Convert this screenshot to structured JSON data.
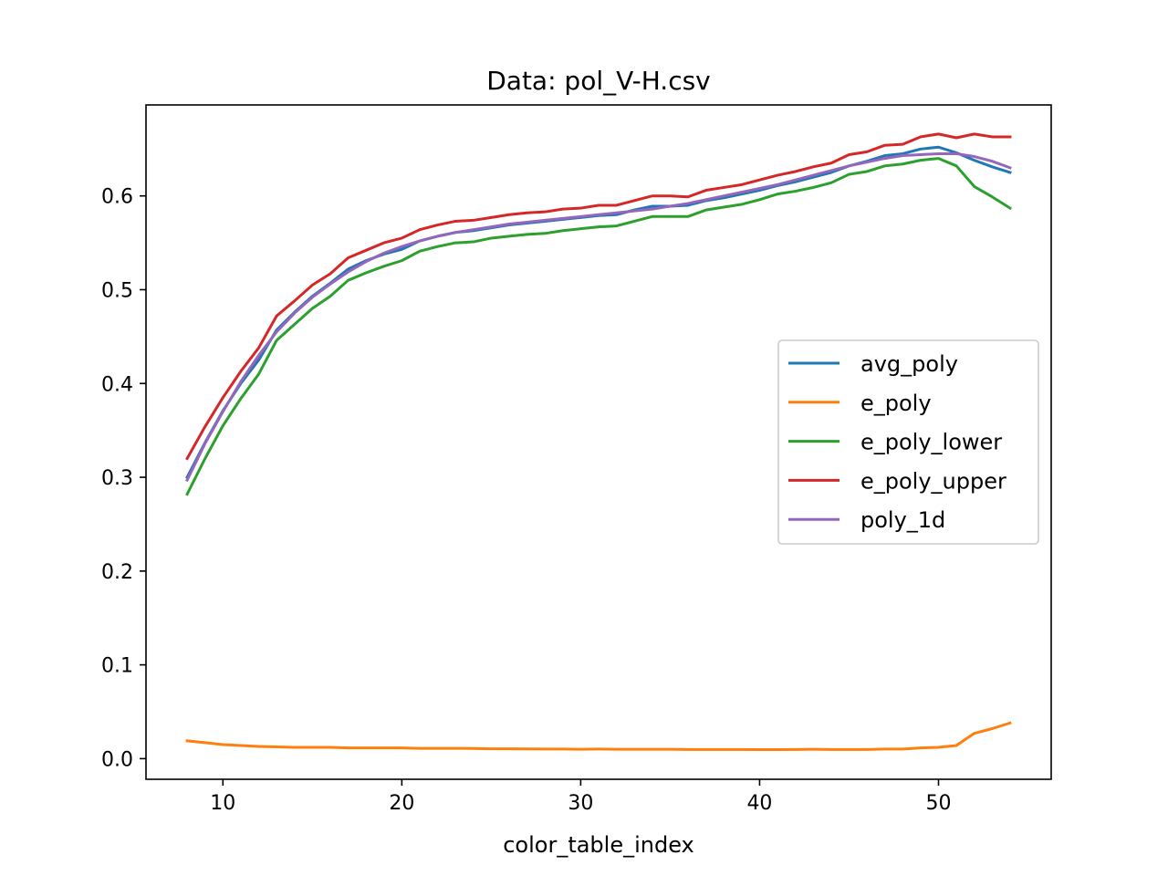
{
  "chart_data": {
    "type": "line",
    "title": "Data: pol_V-H.csv",
    "xlabel": "color_table_index",
    "ylabel": "",
    "xlim": [
      5.7,
      56.3
    ],
    "ylim": [
      -0.022,
      0.697
    ],
    "xticks": [
      10,
      20,
      30,
      40,
      50
    ],
    "xtick_labels": [
      "10",
      "20",
      "30",
      "40",
      "50"
    ],
    "yticks": [
      0.0,
      0.1,
      0.2,
      0.3,
      0.4,
      0.5,
      0.6
    ],
    "ytick_labels": [
      "0.0",
      "0.1",
      "0.2",
      "0.3",
      "0.4",
      "0.5",
      "0.6"
    ],
    "grid": false,
    "legend_position": "center-right",
    "x": [
      8,
      9,
      10,
      11,
      12,
      13,
      14,
      15,
      16,
      17,
      18,
      19,
      20,
      21,
      22,
      23,
      24,
      25,
      26,
      27,
      28,
      29,
      30,
      31,
      32,
      33,
      34,
      35,
      36,
      37,
      38,
      39,
      40,
      41,
      42,
      43,
      44,
      45,
      46,
      47,
      48,
      49,
      50,
      51,
      52,
      53,
      54
    ],
    "series": [
      {
        "name": "avg_poly",
        "color": "#1f77b4",
        "values": [
          0.3,
          0.337,
          0.371,
          0.4,
          0.425,
          0.457,
          0.476,
          0.493,
          0.507,
          0.522,
          0.531,
          0.538,
          0.543,
          0.552,
          0.557,
          0.561,
          0.563,
          0.566,
          0.569,
          0.571,
          0.573,
          0.575,
          0.577,
          0.579,
          0.58,
          0.585,
          0.589,
          0.589,
          0.59,
          0.595,
          0.598,
          0.602,
          0.606,
          0.611,
          0.615,
          0.62,
          0.625,
          0.632,
          0.637,
          0.643,
          0.645,
          0.65,
          0.652,
          0.646,
          0.638,
          0.631,
          0.625
        ]
      },
      {
        "name": "e_poly",
        "color": "#ff7f0e",
        "values": [
          0.019,
          0.017,
          0.015,
          0.014,
          0.013,
          0.0125,
          0.012,
          0.012,
          0.012,
          0.0115,
          0.0115,
          0.0115,
          0.0115,
          0.011,
          0.011,
          0.011,
          0.0108,
          0.0105,
          0.0105,
          0.0103,
          0.0102,
          0.0102,
          0.01,
          0.0102,
          0.01,
          0.01,
          0.01,
          0.01,
          0.0098,
          0.0098,
          0.0097,
          0.0097,
          0.0096,
          0.0096,
          0.0098,
          0.01,
          0.0097,
          0.0097,
          0.0097,
          0.0102,
          0.0102,
          0.0115,
          0.012,
          0.014,
          0.027,
          0.032,
          0.038
        ]
      },
      {
        "name": "e_poly_lower",
        "color": "#2ca02c",
        "values": [
          0.282,
          0.32,
          0.355,
          0.384,
          0.41,
          0.446,
          0.463,
          0.48,
          0.493,
          0.51,
          0.518,
          0.525,
          0.531,
          0.541,
          0.546,
          0.55,
          0.551,
          0.555,
          0.557,
          0.559,
          0.56,
          0.563,
          0.565,
          0.567,
          0.568,
          0.573,
          0.578,
          0.578,
          0.578,
          0.585,
          0.588,
          0.591,
          0.596,
          0.602,
          0.605,
          0.609,
          0.614,
          0.623,
          0.626,
          0.632,
          0.634,
          0.638,
          0.64,
          0.632,
          0.61,
          0.599,
          0.587
        ]
      },
      {
        "name": "e_poly_upper",
        "color": "#d62728",
        "values": [
          0.32,
          0.354,
          0.385,
          0.413,
          0.438,
          0.472,
          0.488,
          0.505,
          0.517,
          0.534,
          0.542,
          0.55,
          0.555,
          0.564,
          0.569,
          0.573,
          0.574,
          0.577,
          0.58,
          0.582,
          0.583,
          0.586,
          0.587,
          0.59,
          0.59,
          0.595,
          0.6,
          0.6,
          0.599,
          0.606,
          0.609,
          0.612,
          0.617,
          0.622,
          0.626,
          0.631,
          0.635,
          0.644,
          0.647,
          0.654,
          0.655,
          0.663,
          0.666,
          0.662,
          0.666,
          0.663,
          0.663
        ]
      },
      {
        "name": "poly_1d",
        "color": "#9467bd",
        "values": [
          0.297,
          0.336,
          0.37,
          0.402,
          0.43,
          0.455,
          0.475,
          0.492,
          0.506,
          0.519,
          0.53,
          0.539,
          0.546,
          0.552,
          0.557,
          0.561,
          0.564,
          0.567,
          0.57,
          0.572,
          0.574,
          0.576,
          0.578,
          0.58,
          0.582,
          0.584,
          0.586,
          0.589,
          0.592,
          0.596,
          0.6,
          0.604,
          0.608,
          0.612,
          0.617,
          0.622,
          0.627,
          0.632,
          0.636,
          0.64,
          0.643,
          0.644,
          0.645,
          0.645,
          0.642,
          0.637,
          0.63
        ]
      }
    ]
  }
}
